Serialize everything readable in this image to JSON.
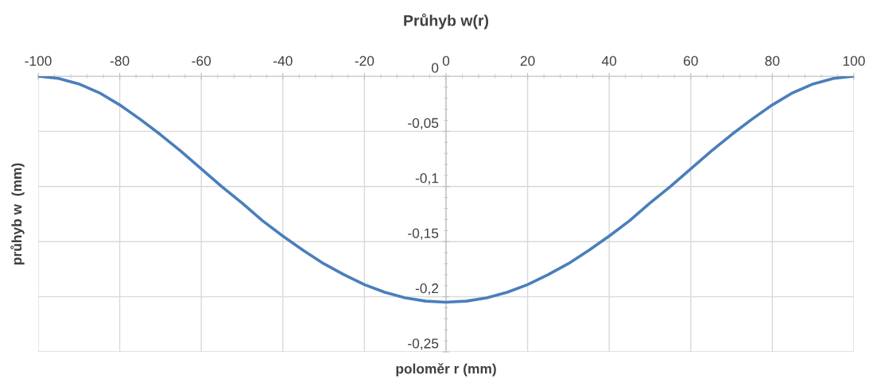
{
  "chart_data": {
    "type": "line",
    "title": "Průhyb w(r)",
    "xlabel": "poloměr r (mm)",
    "ylabel": "průhyb w  (mm)",
    "x": [
      -100,
      -95,
      -90,
      -85,
      -80,
      -75,
      -70,
      -65,
      -60,
      -55,
      -50,
      -45,
      -40,
      -35,
      -30,
      -25,
      -20,
      -15,
      -10,
      -5,
      0,
      5,
      10,
      15,
      20,
      25,
      30,
      35,
      40,
      45,
      50,
      55,
      60,
      65,
      70,
      75,
      80,
      85,
      90,
      95,
      100
    ],
    "series": [
      {
        "color": "#4a7ebb",
        "values": [
          0,
          -0.002,
          -0.007,
          -0.015,
          -0.026,
          -0.039,
          -0.053,
          -0.068,
          -0.084,
          -0.1,
          -0.115,
          -0.131,
          -0.145,
          -0.158,
          -0.17,
          -0.18,
          -0.189,
          -0.196,
          -0.201,
          -0.204,
          -0.205,
          -0.204,
          -0.201,
          -0.196,
          -0.189,
          -0.18,
          -0.17,
          -0.158,
          -0.145,
          -0.131,
          -0.115,
          -0.1,
          -0.084,
          -0.068,
          -0.053,
          -0.039,
          -0.026,
          -0.015,
          -0.007,
          -0.002,
          0
        ]
      }
    ],
    "xlim": [
      -100,
      100
    ],
    "ylim": [
      -0.25,
      0
    ],
    "xticks": [
      -100,
      -80,
      -60,
      -40,
      -20,
      0,
      20,
      40,
      60,
      80,
      100
    ],
    "yticks": [
      {
        "value": -0.25,
        "label": "-0,25"
      },
      {
        "value": -0.2,
        "label": "-0,2"
      },
      {
        "value": -0.15,
        "label": "-0,15"
      },
      {
        "value": -0.1,
        "label": "-0,1"
      },
      {
        "value": -0.05,
        "label": "-0,05"
      },
      {
        "value": 0,
        "label": "0"
      }
    ],
    "grid": true,
    "marker": "none",
    "line_style": "solid"
  }
}
